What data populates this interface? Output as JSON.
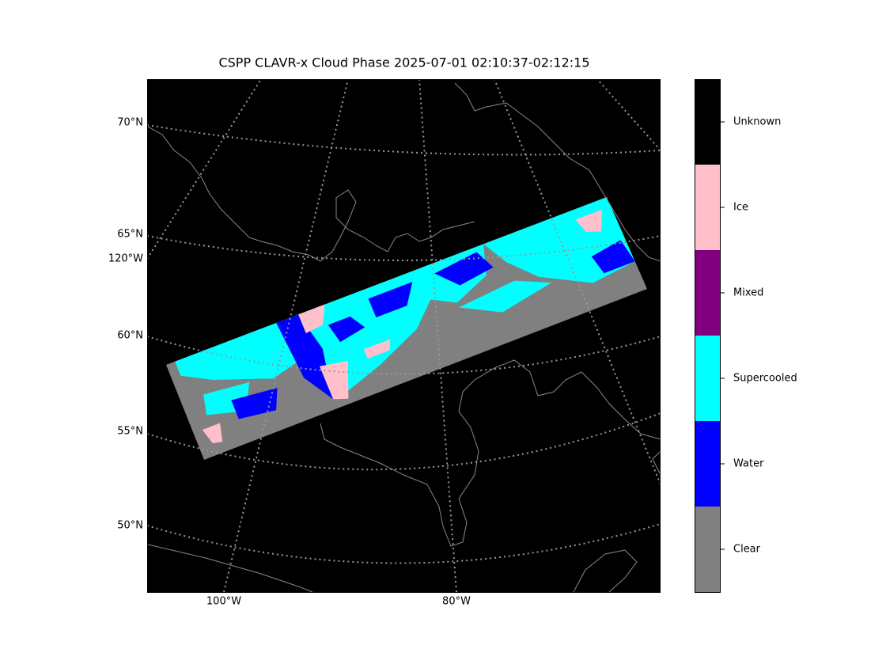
{
  "title": "CSPP CLAVR-x Cloud Phase 2025-07-01 02:10:37-02:12:15",
  "map": {
    "lat_labels": [
      "70°N",
      "65°N",
      "60°N",
      "55°N",
      "50°N"
    ],
    "lon_label_left": "120°W",
    "lon_labels_bottom": [
      "100°W",
      "80°W"
    ]
  },
  "colorbar": {
    "classes": [
      {
        "label": "Unknown",
        "color": "#000000"
      },
      {
        "label": "Ice",
        "color": "#ffc0cb"
      },
      {
        "label": "Mixed",
        "color": "#800080"
      },
      {
        "label": "Supercooled",
        "color": "#00ffff"
      },
      {
        "label": "Water",
        "color": "#0000ff"
      },
      {
        "label": "Clear",
        "color": "#808080"
      }
    ]
  }
}
